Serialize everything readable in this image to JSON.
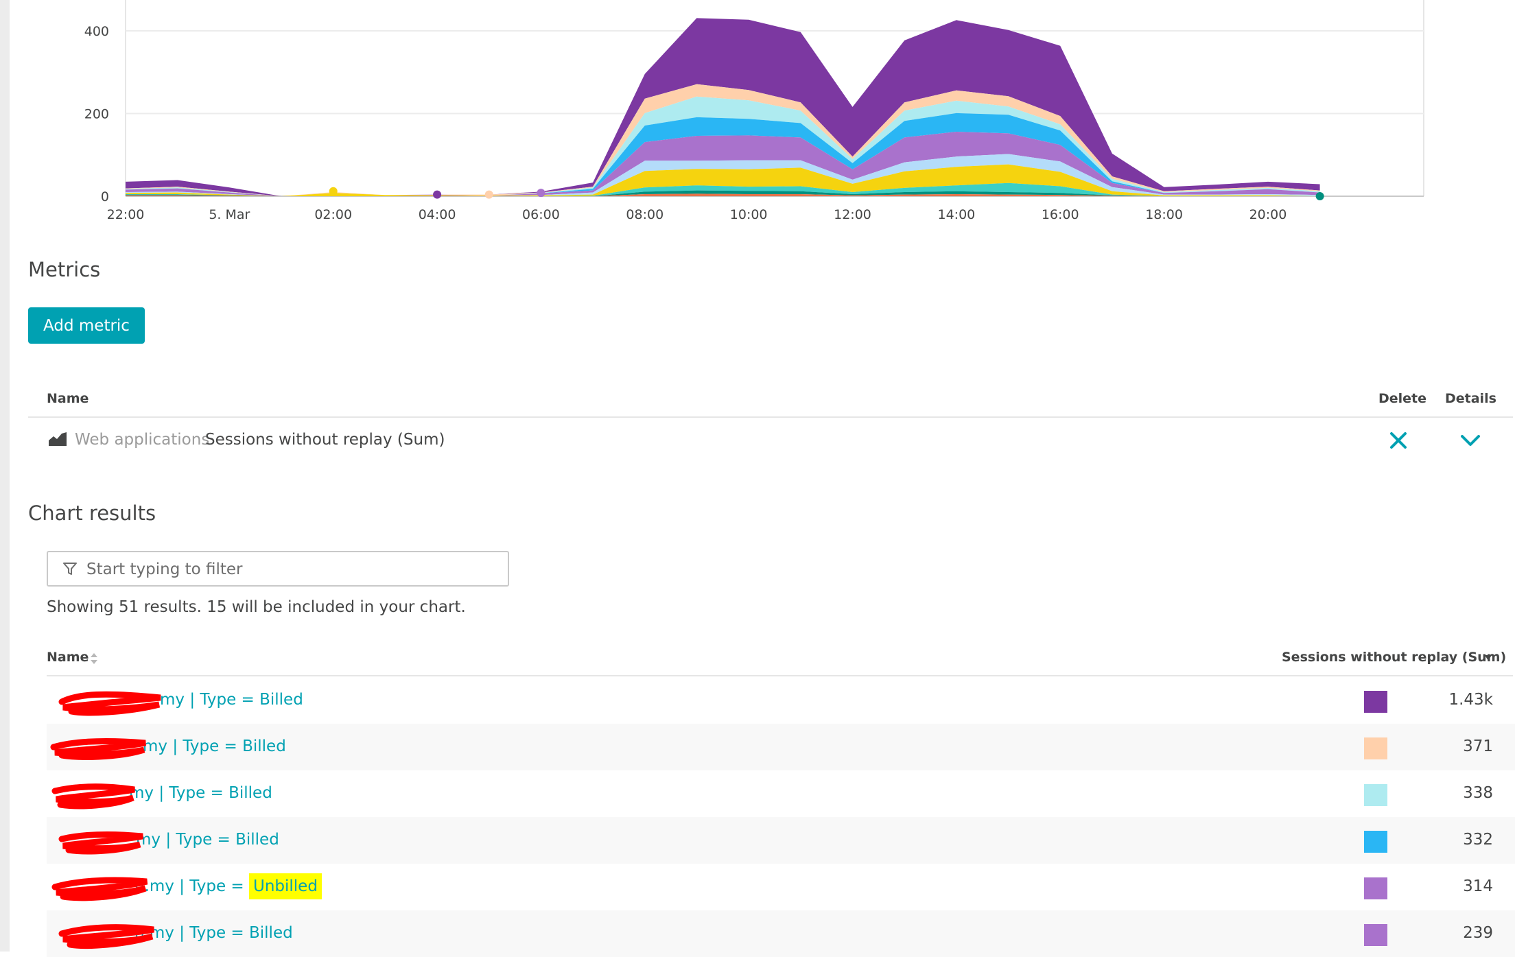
{
  "chart_data": {
    "type": "area",
    "stacked": true,
    "title": "",
    "xlabel": "",
    "ylabel": "",
    "x_ticks": [
      "22:00",
      "5. Mar",
      "02:00",
      "04:00",
      "06:00",
      "08:00",
      "10:00",
      "12:00",
      "14:00",
      "16:00",
      "18:00",
      "20:00"
    ],
    "y_ticks": [
      0,
      200,
      400
    ],
    "ylim": [
      0,
      450
    ],
    "grid": true,
    "x_hours": [
      -2,
      -1,
      0,
      1,
      2,
      3,
      4,
      5,
      6,
      7,
      8,
      9,
      10,
      11,
      12,
      13,
      14,
      15,
      16,
      17,
      18,
      19,
      20,
      21
    ],
    "series": [
      {
        "color": "#e8734a",
        "values": [
          2,
          2,
          1,
          0,
          0,
          0,
          0,
          0,
          0,
          0,
          5,
          6,
          5,
          5,
          2,
          4,
          5,
          4,
          3,
          1,
          0,
          0,
          0,
          0
        ]
      },
      {
        "color": "#008f7f",
        "values": [
          2,
          2,
          1,
          0,
          0,
          0,
          0,
          0,
          0,
          0,
          6,
          8,
          8,
          7,
          3,
          6,
          7,
          6,
          5,
          1,
          0,
          0,
          0,
          0
        ]
      },
      {
        "color": "#3ccfc4",
        "values": [
          1,
          1,
          0,
          0,
          0,
          0,
          0,
          0,
          0,
          1,
          10,
          12,
          10,
          12,
          5,
          10,
          14,
          22,
          16,
          2,
          0,
          0,
          0,
          0
        ]
      },
      {
        "color": "#f5d30f",
        "values": [
          3,
          4,
          2,
          0,
          8,
          3,
          2,
          1,
          2,
          3,
          40,
          40,
          42,
          45,
          20,
          40,
          45,
          45,
          35,
          8,
          2,
          2,
          2,
          0
        ]
      },
      {
        "color": "#b4dcfa",
        "values": [
          2,
          2,
          1,
          0,
          0,
          0,
          0,
          0,
          1,
          5,
          25,
          20,
          22,
          18,
          10,
          22,
          25,
          25,
          25,
          10,
          2,
          2,
          3,
          3
        ]
      },
      {
        "color": "#a972cc",
        "values": [
          6,
          8,
          4,
          0,
          0,
          0,
          2,
          0,
          4,
          5,
          45,
          60,
          60,
          55,
          25,
          60,
          60,
          50,
          40,
          10,
          4,
          8,
          12,
          6
        ]
      },
      {
        "color": "#2ab6f4",
        "values": [
          0,
          0,
          0,
          0,
          0,
          0,
          0,
          0,
          0,
          4,
          40,
          45,
          40,
          35,
          15,
          40,
          45,
          45,
          35,
          4,
          0,
          0,
          0,
          0
        ]
      },
      {
        "color": "#aeebf0",
        "values": [
          2,
          2,
          1,
          0,
          0,
          0,
          0,
          0,
          1,
          3,
          30,
          50,
          45,
          30,
          10,
          25,
          30,
          20,
          15,
          6,
          2,
          3,
          3,
          3
        ]
      },
      {
        "color": "#ffd0ab",
        "values": [
          1,
          2,
          1,
          0,
          2,
          0,
          0,
          3,
          1,
          2,
          35,
          30,
          25,
          20,
          6,
          20,
          25,
          25,
          20,
          6,
          2,
          3,
          3,
          2
        ]
      },
      {
        "color": "#7c38a1",
        "values": [
          16,
          16,
          10,
          0,
          0,
          0,
          0,
          0,
          2,
          10,
          60,
          160,
          170,
          170,
          120,
          150,
          170,
          160,
          170,
          55,
          10,
          10,
          12,
          15
        ]
      }
    ]
  },
  "metrics": {
    "title": "Metrics",
    "add_button": "Add metric",
    "col_name": "Name",
    "col_delete": "Delete",
    "col_details": "Details",
    "row": {
      "type": "Web applications",
      "name": "Sessions without replay (Sum)"
    }
  },
  "results": {
    "title": "Chart results",
    "filter_placeholder": "Start typing to filter",
    "summary": "Showing 51 results. 15 will be included in your chart.",
    "col_name": "Name",
    "col_value": "Sessions without replay (Sum)",
    "rows": [
      {
        "name": "my | Type = Billed",
        "type_prefix": "",
        "highlight": "",
        "color": "#7c38a1",
        "value": "1.43k"
      },
      {
        "name": "my | Type = Billed",
        "type_prefix": "",
        "highlight": "",
        "color": "#ffd0ab",
        "value": "371"
      },
      {
        "name": "my | Type = Billed",
        "type_prefix": "",
        "highlight": "",
        "color": "#aeebf0",
        "value": "338"
      },
      {
        "name": "my | Type = Billed",
        "type_prefix": "",
        "highlight": "",
        "color": "#2ab6f4",
        "value": "332"
      },
      {
        "name": "",
        "type_prefix": "n.my | Type =",
        "highlight": "Unbilled",
        "color": "#a972cc",
        "value": "314"
      },
      {
        "name": "n.my | Type = Billed",
        "type_prefix": "",
        "highlight": "",
        "color": "#a972cc",
        "value": "239"
      }
    ]
  }
}
